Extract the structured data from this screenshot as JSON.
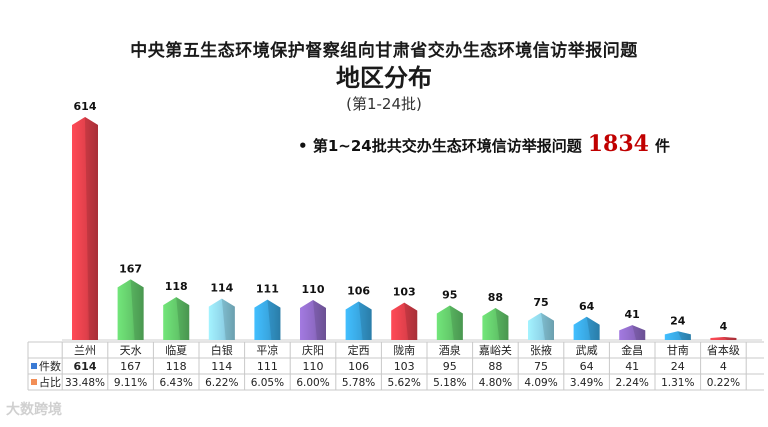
{
  "header": {
    "title": "中央第五生态环境保护督察组向甘肃省交办生态环境信访举报问题",
    "subtitle": "地区分布",
    "batch_range": "(第1-24批)"
  },
  "summary": {
    "bullet": "•",
    "prefix": "第1~24批共交办生态环境信访举报问题",
    "total": "1834",
    "unit": "件"
  },
  "legend_rows": {
    "count_label": "件数",
    "share_label": "占比"
  },
  "watermark": "大数跨境",
  "colors": {
    "red": "#e0404b",
    "green": "#63c86a",
    "teal": "#3fb2cf",
    "lightblue": "#8fd3e8",
    "blue": "#39a6e0",
    "purple": "#8e6ac4",
    "orange": "#f28e56",
    "count_marker": "#3a7bd5",
    "share_marker": "#f28e56"
  },
  "chart_data": {
    "type": "bar",
    "categories": [
      "兰州",
      "天水",
      "临夏",
      "白银",
      "平凉",
      "庆阳",
      "定西",
      "陇南",
      "酒泉",
      "嘉峪关",
      "张掖",
      "武威",
      "金昌",
      "甘南",
      "省本级"
    ],
    "values": [
      614,
      167,
      118,
      114,
      111,
      110,
      106,
      103,
      95,
      88,
      75,
      64,
      41,
      24,
      4
    ],
    "shares": [
      "33.48%",
      "9.11%",
      "6.43%",
      "6.22%",
      "6.05%",
      "6.00%",
      "5.78%",
      "5.62%",
      "5.18%",
      "4.80%",
      "4.09%",
      "3.49%",
      "2.24%",
      "1.31%",
      "0.22%"
    ],
    "bar_colors": [
      "red",
      "green",
      "green",
      "lightblue",
      "blue",
      "purple",
      "blue",
      "red",
      "green",
      "green",
      "lightblue",
      "blue",
      "purple",
      "blue",
      "red"
    ],
    "ylim": [
      0,
      614
    ]
  }
}
